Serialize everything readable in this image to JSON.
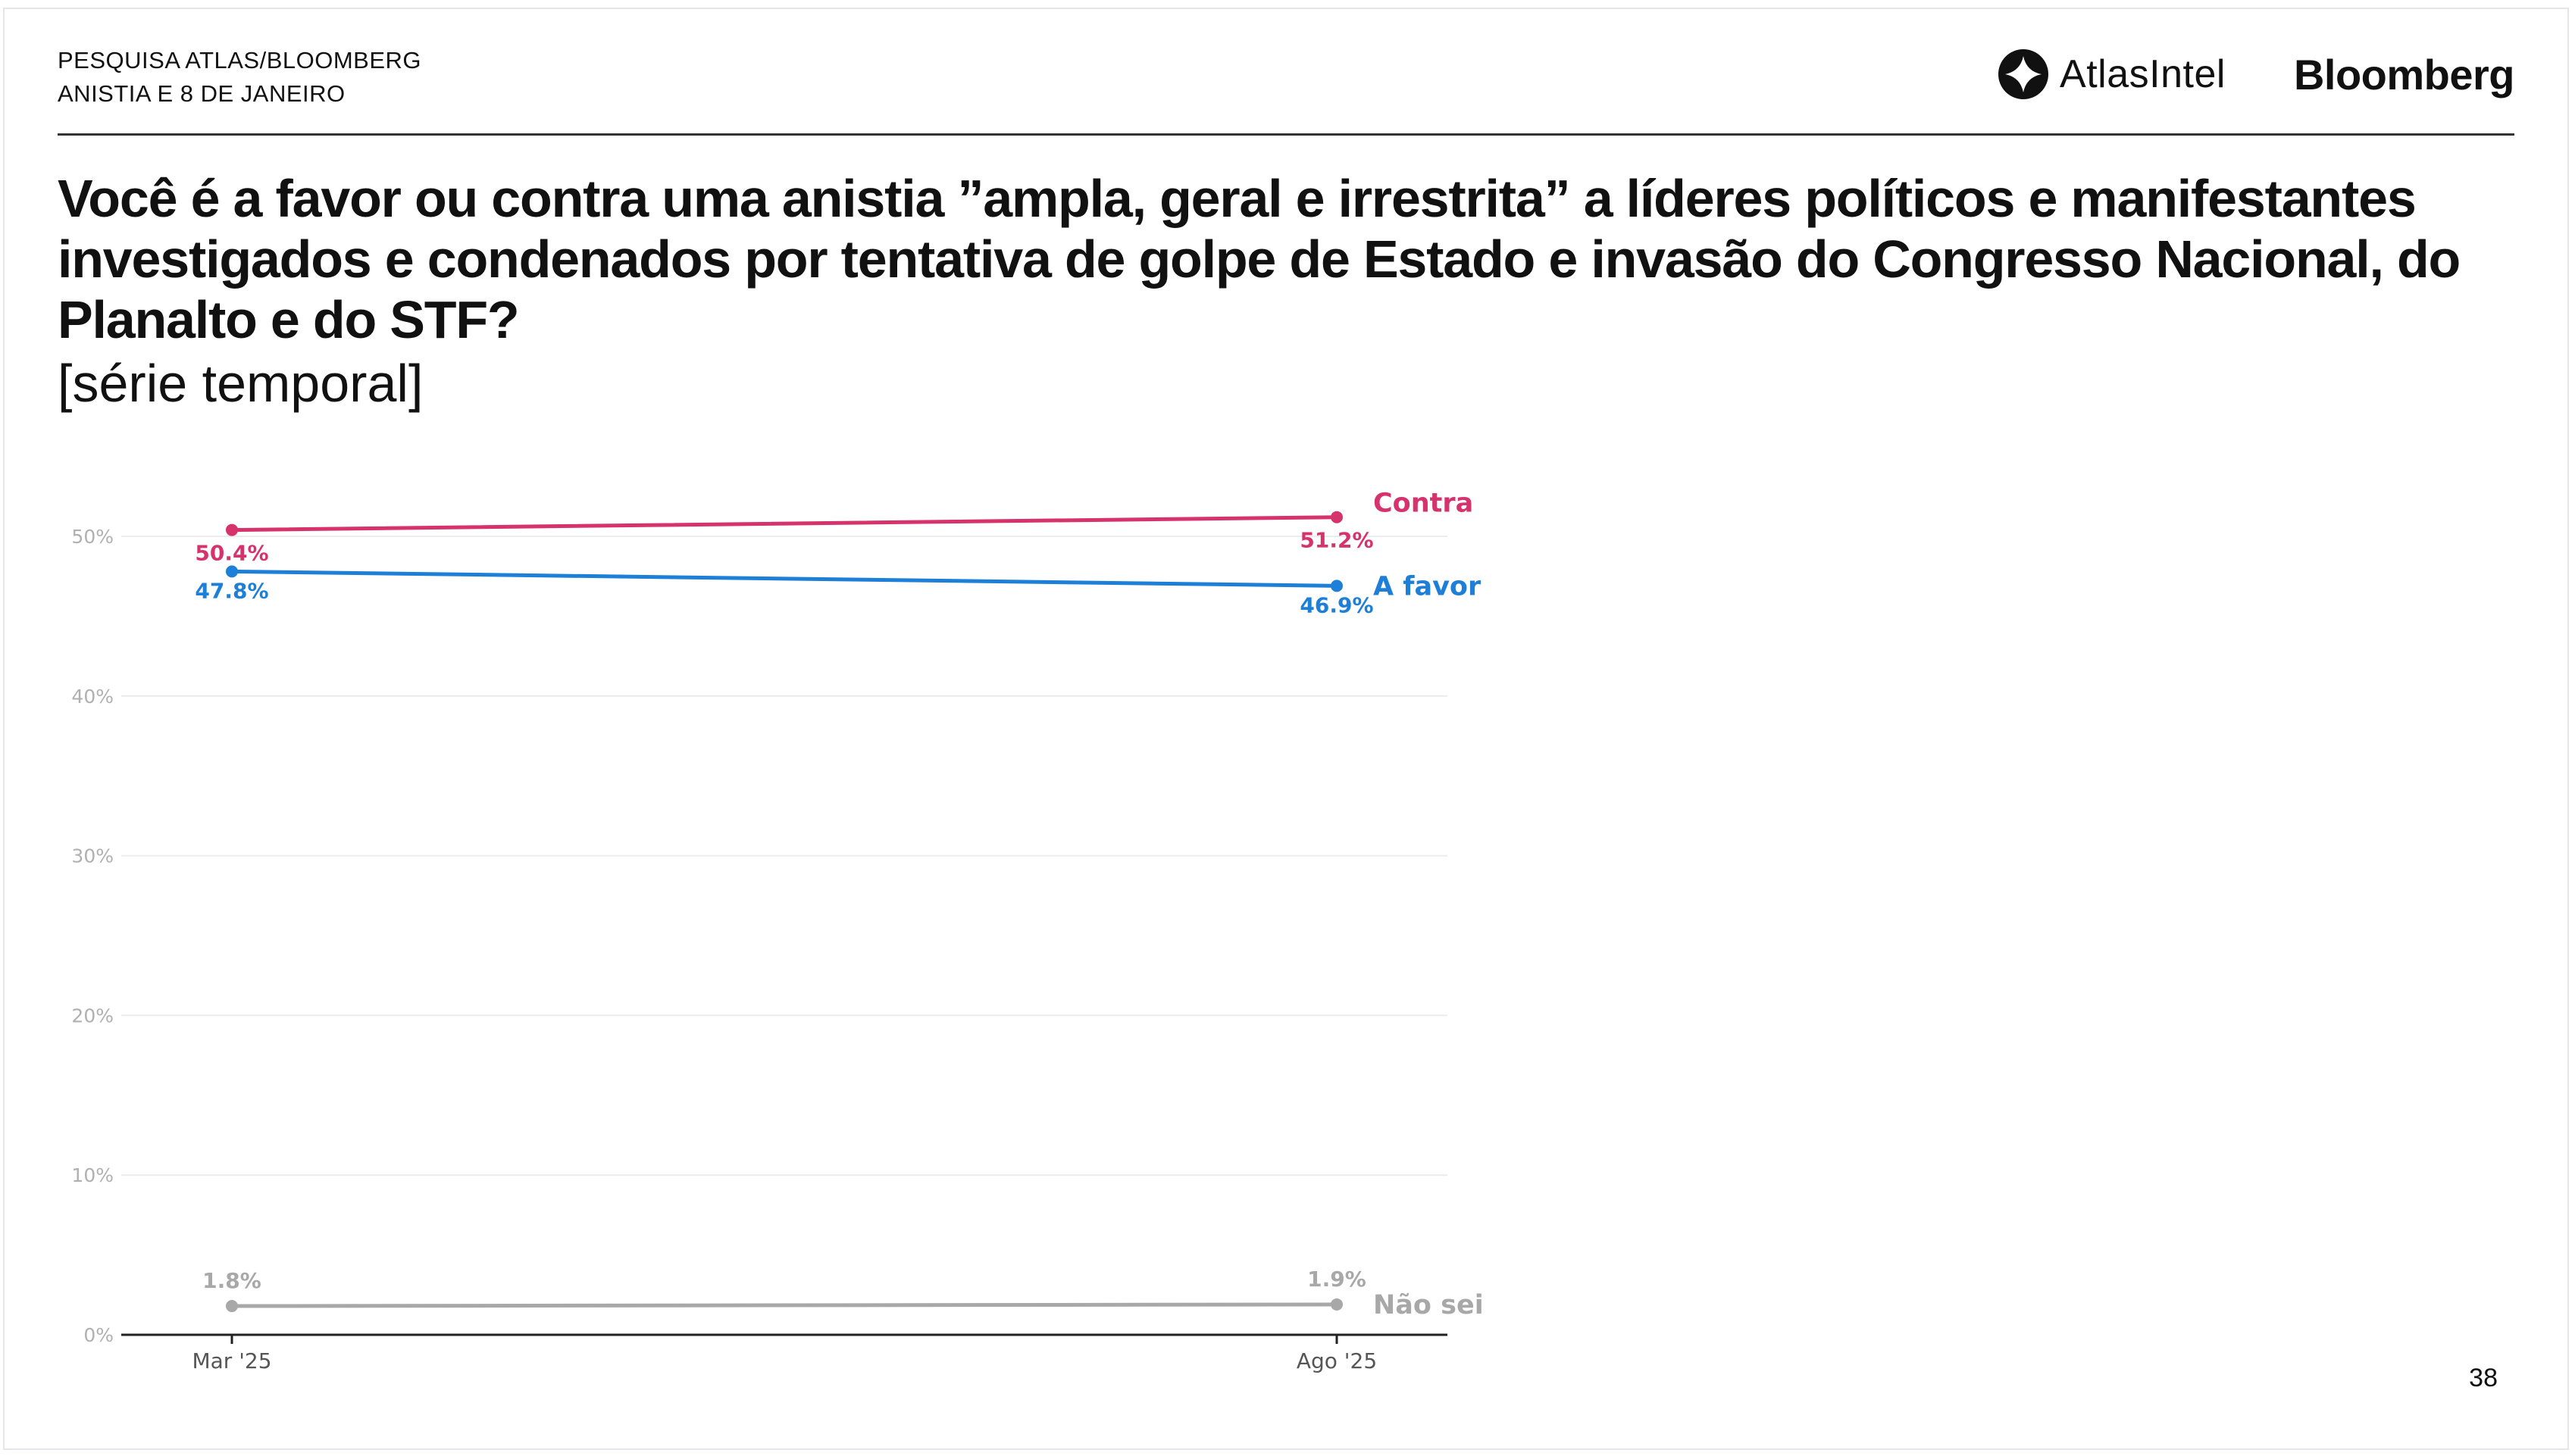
{
  "header": {
    "line1": "PESQUISA ATLAS/BLOOMBERG",
    "line2": "ANISTIA E 8 DE JANEIRO"
  },
  "logos": {
    "atlas": "AtlasIntel",
    "bloomberg": "Bloomberg"
  },
  "question": "Você é a favor ou contra uma anistia ”ampla, geral e irrestrita” a líderes políticos e manifestantes investigados e condenados por tentativa de golpe de Estado e invasão do Congresso Nacional, do Planalto e do STF?",
  "subtitle": "[série temporal]",
  "page_number": "38",
  "chart_data": {
    "type": "line",
    "title": "",
    "xlabel": "",
    "ylabel": "",
    "categories": [
      "Mar '25",
      "Ago '25"
    ],
    "ylim": [
      0,
      50
    ],
    "yticks": [
      0,
      10,
      20,
      30,
      40,
      50
    ],
    "ytick_labels": [
      "0%",
      "10%",
      "20%",
      "30%",
      "40%",
      "50%"
    ],
    "grid": true,
    "series": [
      {
        "name": "Contra",
        "color": "#d6336c",
        "values": [
          50.4,
          51.2
        ],
        "labels": [
          "50.4%",
          "51.2%"
        ]
      },
      {
        "name": "A favor",
        "color": "#1e7fd8",
        "values": [
          47.8,
          46.9
        ],
        "labels": [
          "47.8%",
          "46.9%"
        ]
      },
      {
        "name": "Não sei",
        "color": "#a8a8a8",
        "values": [
          1.8,
          1.9
        ],
        "labels": [
          "1.8%",
          "1.9%"
        ]
      }
    ]
  }
}
